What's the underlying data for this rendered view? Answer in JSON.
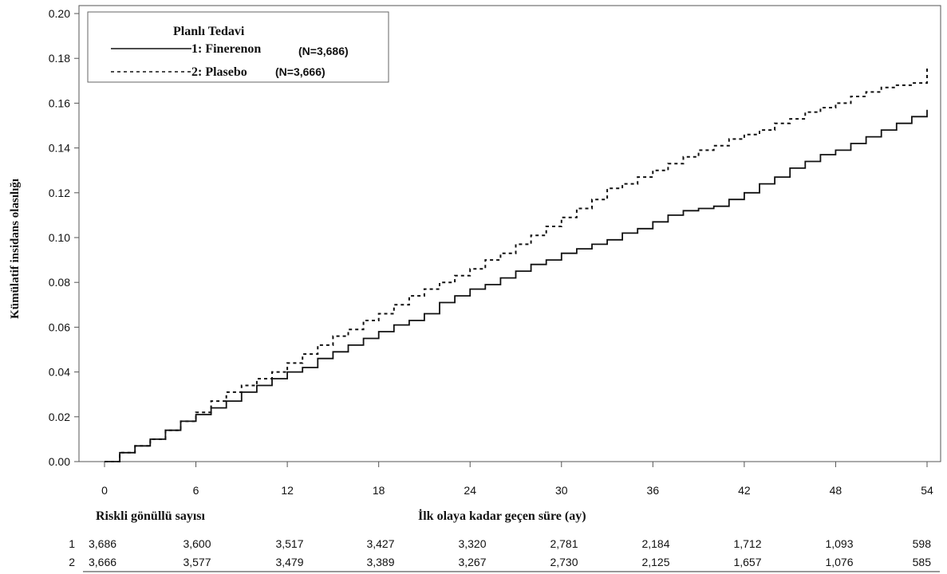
{
  "chart_data": {
    "type": "line",
    "ylabel": "Kümülatif insidans olasılığı",
    "xlabel": "İlk olaya kadar geçen süre (ay)",
    "xlim": [
      0,
      54
    ],
    "ylim": [
      0,
      0.2
    ],
    "x_ticks": [
      0,
      6,
      12,
      18,
      24,
      30,
      36,
      42,
      48,
      54
    ],
    "x_tick_labels": [
      "0",
      "6",
      "12",
      "18",
      "24",
      "30",
      "36",
      "42",
      "48",
      "54"
    ],
    "y_ticks": [
      0,
      0.02,
      0.04,
      0.06,
      0.08,
      0.1,
      0.12,
      0.14,
      0.16,
      0.18,
      0.2
    ],
    "y_tick_labels": [
      "0.00",
      "0.02",
      "0.04",
      "0.06",
      "0.08",
      "0.10",
      "0.12",
      "0.14",
      "0.16",
      "0.18",
      "0.20"
    ],
    "legend": {
      "title": "Planlı Tedavi",
      "position": "top-left",
      "entries": [
        {
          "label": "1: Finerenon",
          "n": "(N=3,686)",
          "style": "solid"
        },
        {
          "label": "2: Plasebo",
          "n": "(N=3,666)",
          "style": "dashed"
        }
      ]
    },
    "series": [
      {
        "name": "1: Finerenon",
        "style": "solid",
        "x": [
          0,
          1,
          2,
          3,
          4,
          5,
          6,
          7,
          8,
          9,
          10,
          11,
          12,
          13,
          14,
          15,
          16,
          17,
          18,
          19,
          20,
          21,
          22,
          23,
          24,
          25,
          26,
          27,
          28,
          29,
          30,
          31,
          32,
          33,
          34,
          35,
          36,
          37,
          38,
          39,
          40,
          41,
          42,
          43,
          44,
          45,
          46,
          47,
          48,
          49,
          50,
          51,
          52,
          53,
          54
        ],
        "y": [
          0.0,
          0.004,
          0.007,
          0.01,
          0.014,
          0.018,
          0.021,
          0.024,
          0.027,
          0.031,
          0.034,
          0.037,
          0.04,
          0.042,
          0.046,
          0.049,
          0.052,
          0.055,
          0.058,
          0.061,
          0.063,
          0.066,
          0.071,
          0.074,
          0.077,
          0.079,
          0.082,
          0.085,
          0.088,
          0.09,
          0.093,
          0.095,
          0.097,
          0.099,
          0.102,
          0.104,
          0.107,
          0.11,
          0.112,
          0.113,
          0.114,
          0.117,
          0.12,
          0.124,
          0.127,
          0.131,
          0.134,
          0.137,
          0.139,
          0.142,
          0.145,
          0.148,
          0.151,
          0.154,
          0.157
        ]
      },
      {
        "name": "2: Plasebo",
        "style": "dashed",
        "x": [
          0,
          1,
          2,
          3,
          4,
          5,
          6,
          7,
          8,
          9,
          10,
          11,
          12,
          13,
          14,
          15,
          16,
          17,
          18,
          19,
          20,
          21,
          22,
          23,
          24,
          25,
          26,
          27,
          28,
          29,
          30,
          31,
          32,
          33,
          34,
          35,
          36,
          37,
          38,
          39,
          40,
          41,
          42,
          43,
          44,
          45,
          46,
          47,
          48,
          49,
          50,
          51,
          52,
          53,
          54
        ],
        "y": [
          0.0,
          0.004,
          0.007,
          0.01,
          0.014,
          0.018,
          0.022,
          0.027,
          0.031,
          0.034,
          0.037,
          0.04,
          0.044,
          0.048,
          0.052,
          0.056,
          0.059,
          0.063,
          0.066,
          0.07,
          0.074,
          0.077,
          0.08,
          0.083,
          0.086,
          0.09,
          0.093,
          0.097,
          0.101,
          0.105,
          0.109,
          0.113,
          0.117,
          0.122,
          0.124,
          0.127,
          0.13,
          0.133,
          0.136,
          0.139,
          0.141,
          0.144,
          0.146,
          0.148,
          0.151,
          0.153,
          0.156,
          0.158,
          0.16,
          0.163,
          0.165,
          0.167,
          0.168,
          0.169,
          0.176
        ]
      }
    ]
  },
  "risk_table": {
    "title": "Riskli gönüllü sayısı",
    "rows": [
      {
        "id": "1",
        "values": [
          "3,686",
          "3,600",
          "3,517",
          "3,427",
          "3,320",
          "2,781",
          "2,184",
          "1,712",
          "1,093",
          "598"
        ]
      },
      {
        "id": "2",
        "values": [
          "3,666",
          "3,577",
          "3,479",
          "3,389",
          "3,267",
          "2,730",
          "2,125",
          "1,657",
          "1,076",
          "585"
        ]
      }
    ]
  },
  "colors": {
    "line": "#111111",
    "axis": "#555555",
    "text": "#111111"
  }
}
